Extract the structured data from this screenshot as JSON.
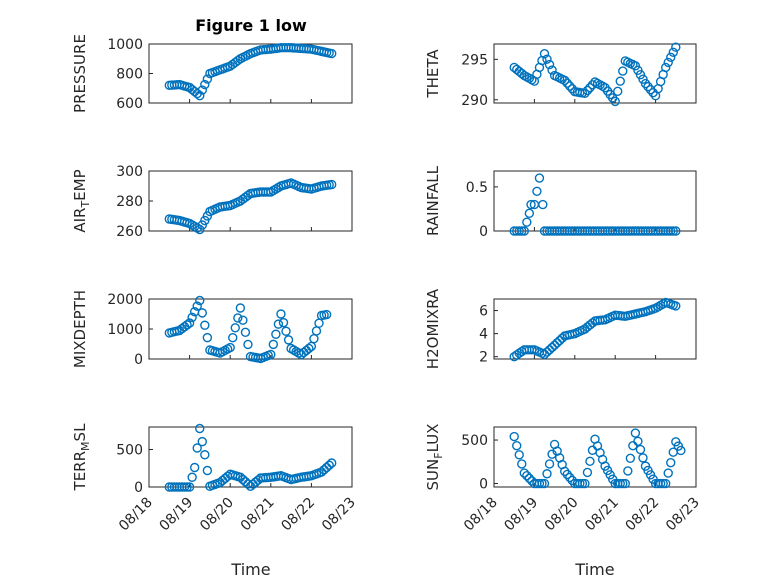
{
  "figure": {
    "title": "Figure 1 low",
    "xlabel": "Time",
    "x_tick_labels": [
      "08/18",
      "08/19",
      "08/20",
      "08/21",
      "08/22",
      "08/23"
    ]
  },
  "chart_data": [
    {
      "type": "scatter",
      "ylabel": "PRESSURE",
      "ylim": [
        600,
        1000
      ],
      "yticks": [
        600,
        800,
        1000
      ],
      "grid": true,
      "x_range": [
        "08/18",
        "08/23"
      ],
      "marker": "circle",
      "color": "#0072BD",
      "points": [
        [
          "08/18 12:00",
          720
        ],
        [
          "08/18 18:00",
          725
        ],
        [
          "08/19 00:00",
          705
        ],
        [
          "08/19 06:00",
          650
        ],
        [
          "08/19 12:00",
          800
        ],
        [
          "08/19 18:00",
          825
        ],
        [
          "08/20 00:00",
          850
        ],
        [
          "08/20 06:00",
          900
        ],
        [
          "08/20 12:00",
          935
        ],
        [
          "08/20 18:00",
          960
        ],
        [
          "08/21 00:00",
          965
        ],
        [
          "08/21 06:00",
          975
        ],
        [
          "08/21 12:00",
          975
        ],
        [
          "08/21 18:00",
          970
        ],
        [
          "08/22 00:00",
          965
        ],
        [
          "08/22 06:00",
          950
        ],
        [
          "08/22 12:00",
          935
        ]
      ]
    },
    {
      "type": "scatter",
      "ylabel": "THETA",
      "ylim": [
        289.6,
        296.9
      ],
      "yticks": [
        290,
        295
      ],
      "grid": true,
      "x_range": [
        "08/18",
        "08/23"
      ],
      "marker": "circle",
      "color": "#0072BD",
      "points": [
        [
          "08/18 12:00",
          294.0
        ],
        [
          "08/18 18:00",
          293.0
        ],
        [
          "08/19 00:00",
          292.3
        ],
        [
          "08/19 06:00",
          295.7
        ],
        [
          "08/19 12:00",
          293.0
        ],
        [
          "08/19 18:00",
          292.4
        ],
        [
          "08/20 00:00",
          291.0
        ],
        [
          "08/20 06:00",
          290.8
        ],
        [
          "08/20 12:00",
          292.2
        ],
        [
          "08/20 18:00",
          291.5
        ],
        [
          "08/21 00:00",
          289.8
        ],
        [
          "08/21 06:00",
          294.8
        ],
        [
          "08/21 12:00",
          294.2
        ],
        [
          "08/21 18:00",
          292.0
        ],
        [
          "08/22 00:00",
          290.5
        ],
        [
          "08/22 06:00",
          294.0
        ],
        [
          "08/22 12:00",
          296.5
        ]
      ]
    },
    {
      "type": "scatter",
      "ylabel": "AIR_TEMP",
      "ylabel_sub": "T",
      "ylim": [
        260,
        300
      ],
      "yticks": [
        260,
        280,
        300
      ],
      "grid": true,
      "x_range": [
        "08/18",
        "08/23"
      ],
      "marker": "circle",
      "color": "#0072BD",
      "points": [
        [
          "08/18 12:00",
          268
        ],
        [
          "08/18 18:00",
          267
        ],
        [
          "08/19 00:00",
          265
        ],
        [
          "08/19 06:00",
          261
        ],
        [
          "08/19 12:00",
          273
        ],
        [
          "08/19 18:00",
          276
        ],
        [
          "08/20 00:00",
          277
        ],
        [
          "08/20 06:00",
          280
        ],
        [
          "08/20 12:00",
          285
        ],
        [
          "08/20 18:00",
          286
        ],
        [
          "08/21 00:00",
          286
        ],
        [
          "08/21 06:00",
          290
        ],
        [
          "08/21 12:00",
          292
        ],
        [
          "08/21 18:00",
          289
        ],
        [
          "08/22 00:00",
          288
        ],
        [
          "08/22 06:00",
          290
        ],
        [
          "08/22 12:00",
          291
        ]
      ]
    },
    {
      "type": "scatter",
      "ylabel": "RAINFALL",
      "ylim": [
        0,
        0.68
      ],
      "yticks": [
        0,
        0.5
      ],
      "ytick_labels": [
        "0",
        "0.5"
      ],
      "grid": true,
      "x_range": [
        "08/18",
        "08/23"
      ],
      "marker": "circle",
      "color": "#0072BD",
      "points": [
        [
          "08/18 12:00",
          0
        ],
        [
          "08/18 18:00",
          0
        ],
        [
          "08/18 21:00",
          0.2
        ],
        [
          "08/18 22:00",
          0.3
        ],
        [
          "08/19 00:00",
          0.3
        ],
        [
          "08/19 03:00",
          0.6
        ],
        [
          "08/19 05:00",
          0.3
        ],
        [
          "08/19 06:00",
          0
        ],
        [
          "08/19 12:00",
          0
        ],
        [
          "08/19 18:00",
          0
        ],
        [
          "08/20 00:00",
          0
        ],
        [
          "08/20 12:00",
          0
        ],
        [
          "08/21 00:00",
          0
        ],
        [
          "08/21 12:00",
          0
        ],
        [
          "08/22 00:00",
          0
        ],
        [
          "08/22 12:00",
          0
        ]
      ]
    },
    {
      "type": "scatter",
      "ylabel": "MIXDEPTH",
      "ylim": [
        0,
        2000
      ],
      "yticks": [
        0,
        1000,
        2000
      ],
      "grid": true,
      "x_range": [
        "08/18",
        "08/23"
      ],
      "marker": "circle",
      "color": "#0072BD",
      "points": [
        [
          "08/18 12:00",
          870
        ],
        [
          "08/18 18:00",
          950
        ],
        [
          "08/19 00:00",
          1200
        ],
        [
          "08/19 06:00",
          1950
        ],
        [
          "08/19 12:00",
          300
        ],
        [
          "08/19 18:00",
          200
        ],
        [
          "08/20 00:00",
          380
        ],
        [
          "08/20 06:00",
          1700
        ],
        [
          "08/20 12:00",
          80
        ],
        [
          "08/20 18:00",
          20
        ],
        [
          "08/21 00:00",
          150
        ],
        [
          "08/21 06:00",
          1500
        ],
        [
          "08/21 12:00",
          350
        ],
        [
          "08/21 18:00",
          150
        ],
        [
          "08/22 00:00",
          420
        ],
        [
          "08/22 06:00",
          1450
        ],
        [
          "08/22 09:00",
          1480
        ]
      ]
    },
    {
      "type": "scatter",
      "ylabel": "H2OMIXRA",
      "ylim": [
        1.8,
        7.0
      ],
      "yticks": [
        2,
        4,
        6
      ],
      "grid": true,
      "x_range": [
        "08/18",
        "08/23"
      ],
      "marker": "circle",
      "color": "#0072BD",
      "points": [
        [
          "08/18 12:00",
          2.0
        ],
        [
          "08/18 18:00",
          2.6
        ],
        [
          "08/19 00:00",
          2.6
        ],
        [
          "08/19 06:00",
          2.2
        ],
        [
          "08/19 12:00",
          3.0
        ],
        [
          "08/19 18:00",
          3.8
        ],
        [
          "08/20 00:00",
          4.0
        ],
        [
          "08/20 06:00",
          4.4
        ],
        [
          "08/20 12:00",
          5.1
        ],
        [
          "08/20 18:00",
          5.2
        ],
        [
          "08/21 00:00",
          5.6
        ],
        [
          "08/21 06:00",
          5.5
        ],
        [
          "08/21 12:00",
          5.7
        ],
        [
          "08/21 18:00",
          5.9
        ],
        [
          "08/22 00:00",
          6.2
        ],
        [
          "08/22 06:00",
          6.7
        ],
        [
          "08/22 12:00",
          6.4
        ]
      ]
    },
    {
      "type": "scatter",
      "ylabel": "TERR_MSL",
      "ylabel_sub": "M",
      "ylim": [
        0,
        800
      ],
      "yticks": [
        0,
        500
      ],
      "grid": true,
      "x_range": [
        "08/18",
        "08/23"
      ],
      "marker": "circle",
      "color": "#0072BD",
      "points": [
        [
          "08/18 12:00",
          0
        ],
        [
          "08/18 18:00",
          0
        ],
        [
          "08/19 00:00",
          0
        ],
        [
          "08/19 03:00",
          260
        ],
        [
          "08/19 06:00",
          780
        ],
        [
          "08/19 09:00",
          430
        ],
        [
          "08/19 12:00",
          10
        ],
        [
          "08/19 18:00",
          60
        ],
        [
          "08/20 00:00",
          170
        ],
        [
          "08/20 06:00",
          130
        ],
        [
          "08/20 12:00",
          10
        ],
        [
          "08/20 18:00",
          120
        ],
        [
          "08/21 00:00",
          130
        ],
        [
          "08/21 06:00",
          150
        ],
        [
          "08/21 12:00",
          100
        ],
        [
          "08/21 18:00",
          130
        ],
        [
          "08/22 00:00",
          150
        ],
        [
          "08/22 06:00",
          200
        ],
        [
          "08/22 12:00",
          320
        ]
      ]
    },
    {
      "type": "scatter",
      "ylabel": "SUN_FLUX",
      "ylabel_sub": "F",
      "ylim": [
        -40,
        650
      ],
      "yticks": [
        0,
        500
      ],
      "grid": true,
      "x_range": [
        "08/18",
        "08/23"
      ],
      "marker": "circle",
      "color": "#0072BD",
      "points": [
        [
          "08/18 12:00",
          540
        ],
        [
          "08/18 18:00",
          120
        ],
        [
          "08/19 00:00",
          0
        ],
        [
          "08/19 06:00",
          0
        ],
        [
          "08/19 12:00",
          450
        ],
        [
          "08/19 18:00",
          140
        ],
        [
          "08/20 00:00",
          0
        ],
        [
          "08/20 06:00",
          0
        ],
        [
          "08/20 12:00",
          510
        ],
        [
          "08/20 18:00",
          200
        ],
        [
          "08/21 00:00",
          0
        ],
        [
          "08/21 06:00",
          0
        ],
        [
          "08/21 12:00",
          580
        ],
        [
          "08/21 18:00",
          200
        ],
        [
          "08/22 00:00",
          0
        ],
        [
          "08/22 06:00",
          0
        ],
        [
          "08/22 12:00",
          480
        ],
        [
          "08/22 15:00",
          380
        ]
      ]
    }
  ]
}
